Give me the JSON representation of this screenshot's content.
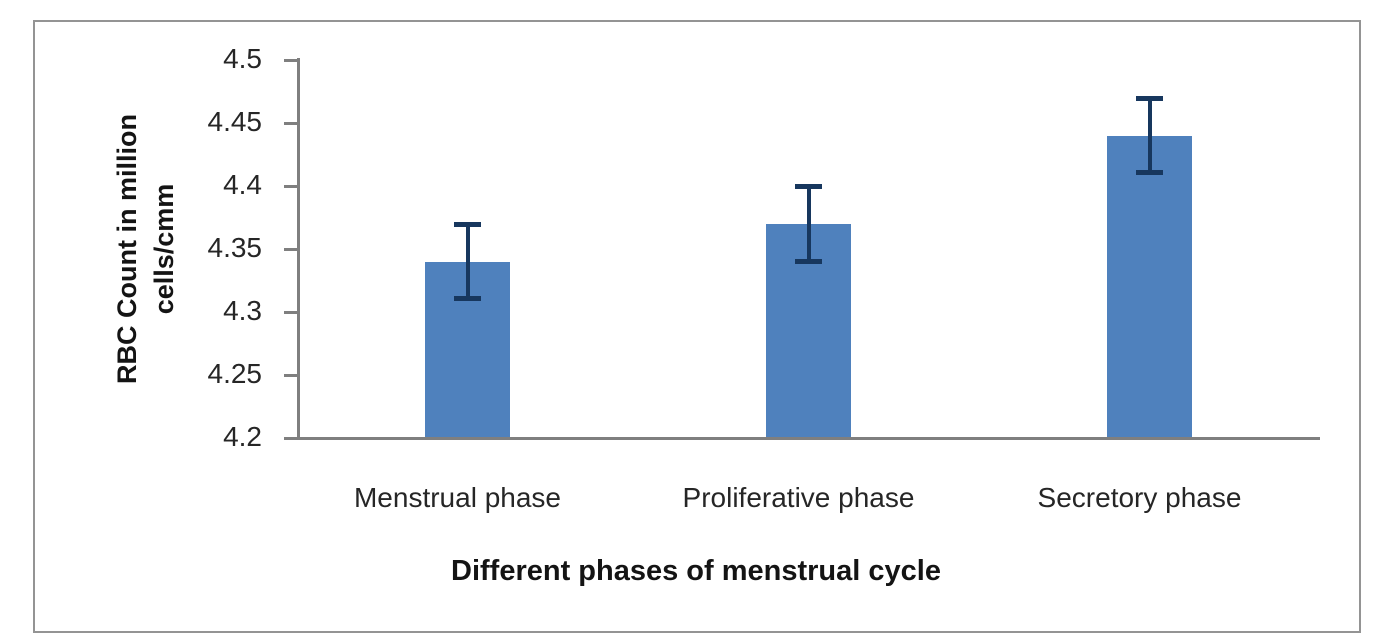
{
  "chart_data": {
    "type": "bar",
    "title": "",
    "xlabel": "Different phases of menstrual cycle",
    "ylabel": "RBC Count in million cells/cmm",
    "categories": [
      "Menstrual phase",
      "Proliferative phase",
      "Secretory phase"
    ],
    "values": [
      4.34,
      4.37,
      4.44
    ],
    "error_bars": [
      0.03,
      0.03,
      0.03
    ],
    "ylim": [
      4.2,
      4.5
    ],
    "ytick_step": 0.05,
    "ytick_labels": [
      "4.5",
      "4.45",
      "4.4",
      "4.35",
      "4.3",
      "4.25",
      "4.2"
    ],
    "grid": false,
    "legend": false,
    "colors": {
      "bar_fill": "#4f81bd",
      "error_bar": "#17375e",
      "axis_line": "#7f7f7f",
      "frame_border": "#949494",
      "tick_text": "#262626",
      "title_text": "#141414"
    }
  }
}
